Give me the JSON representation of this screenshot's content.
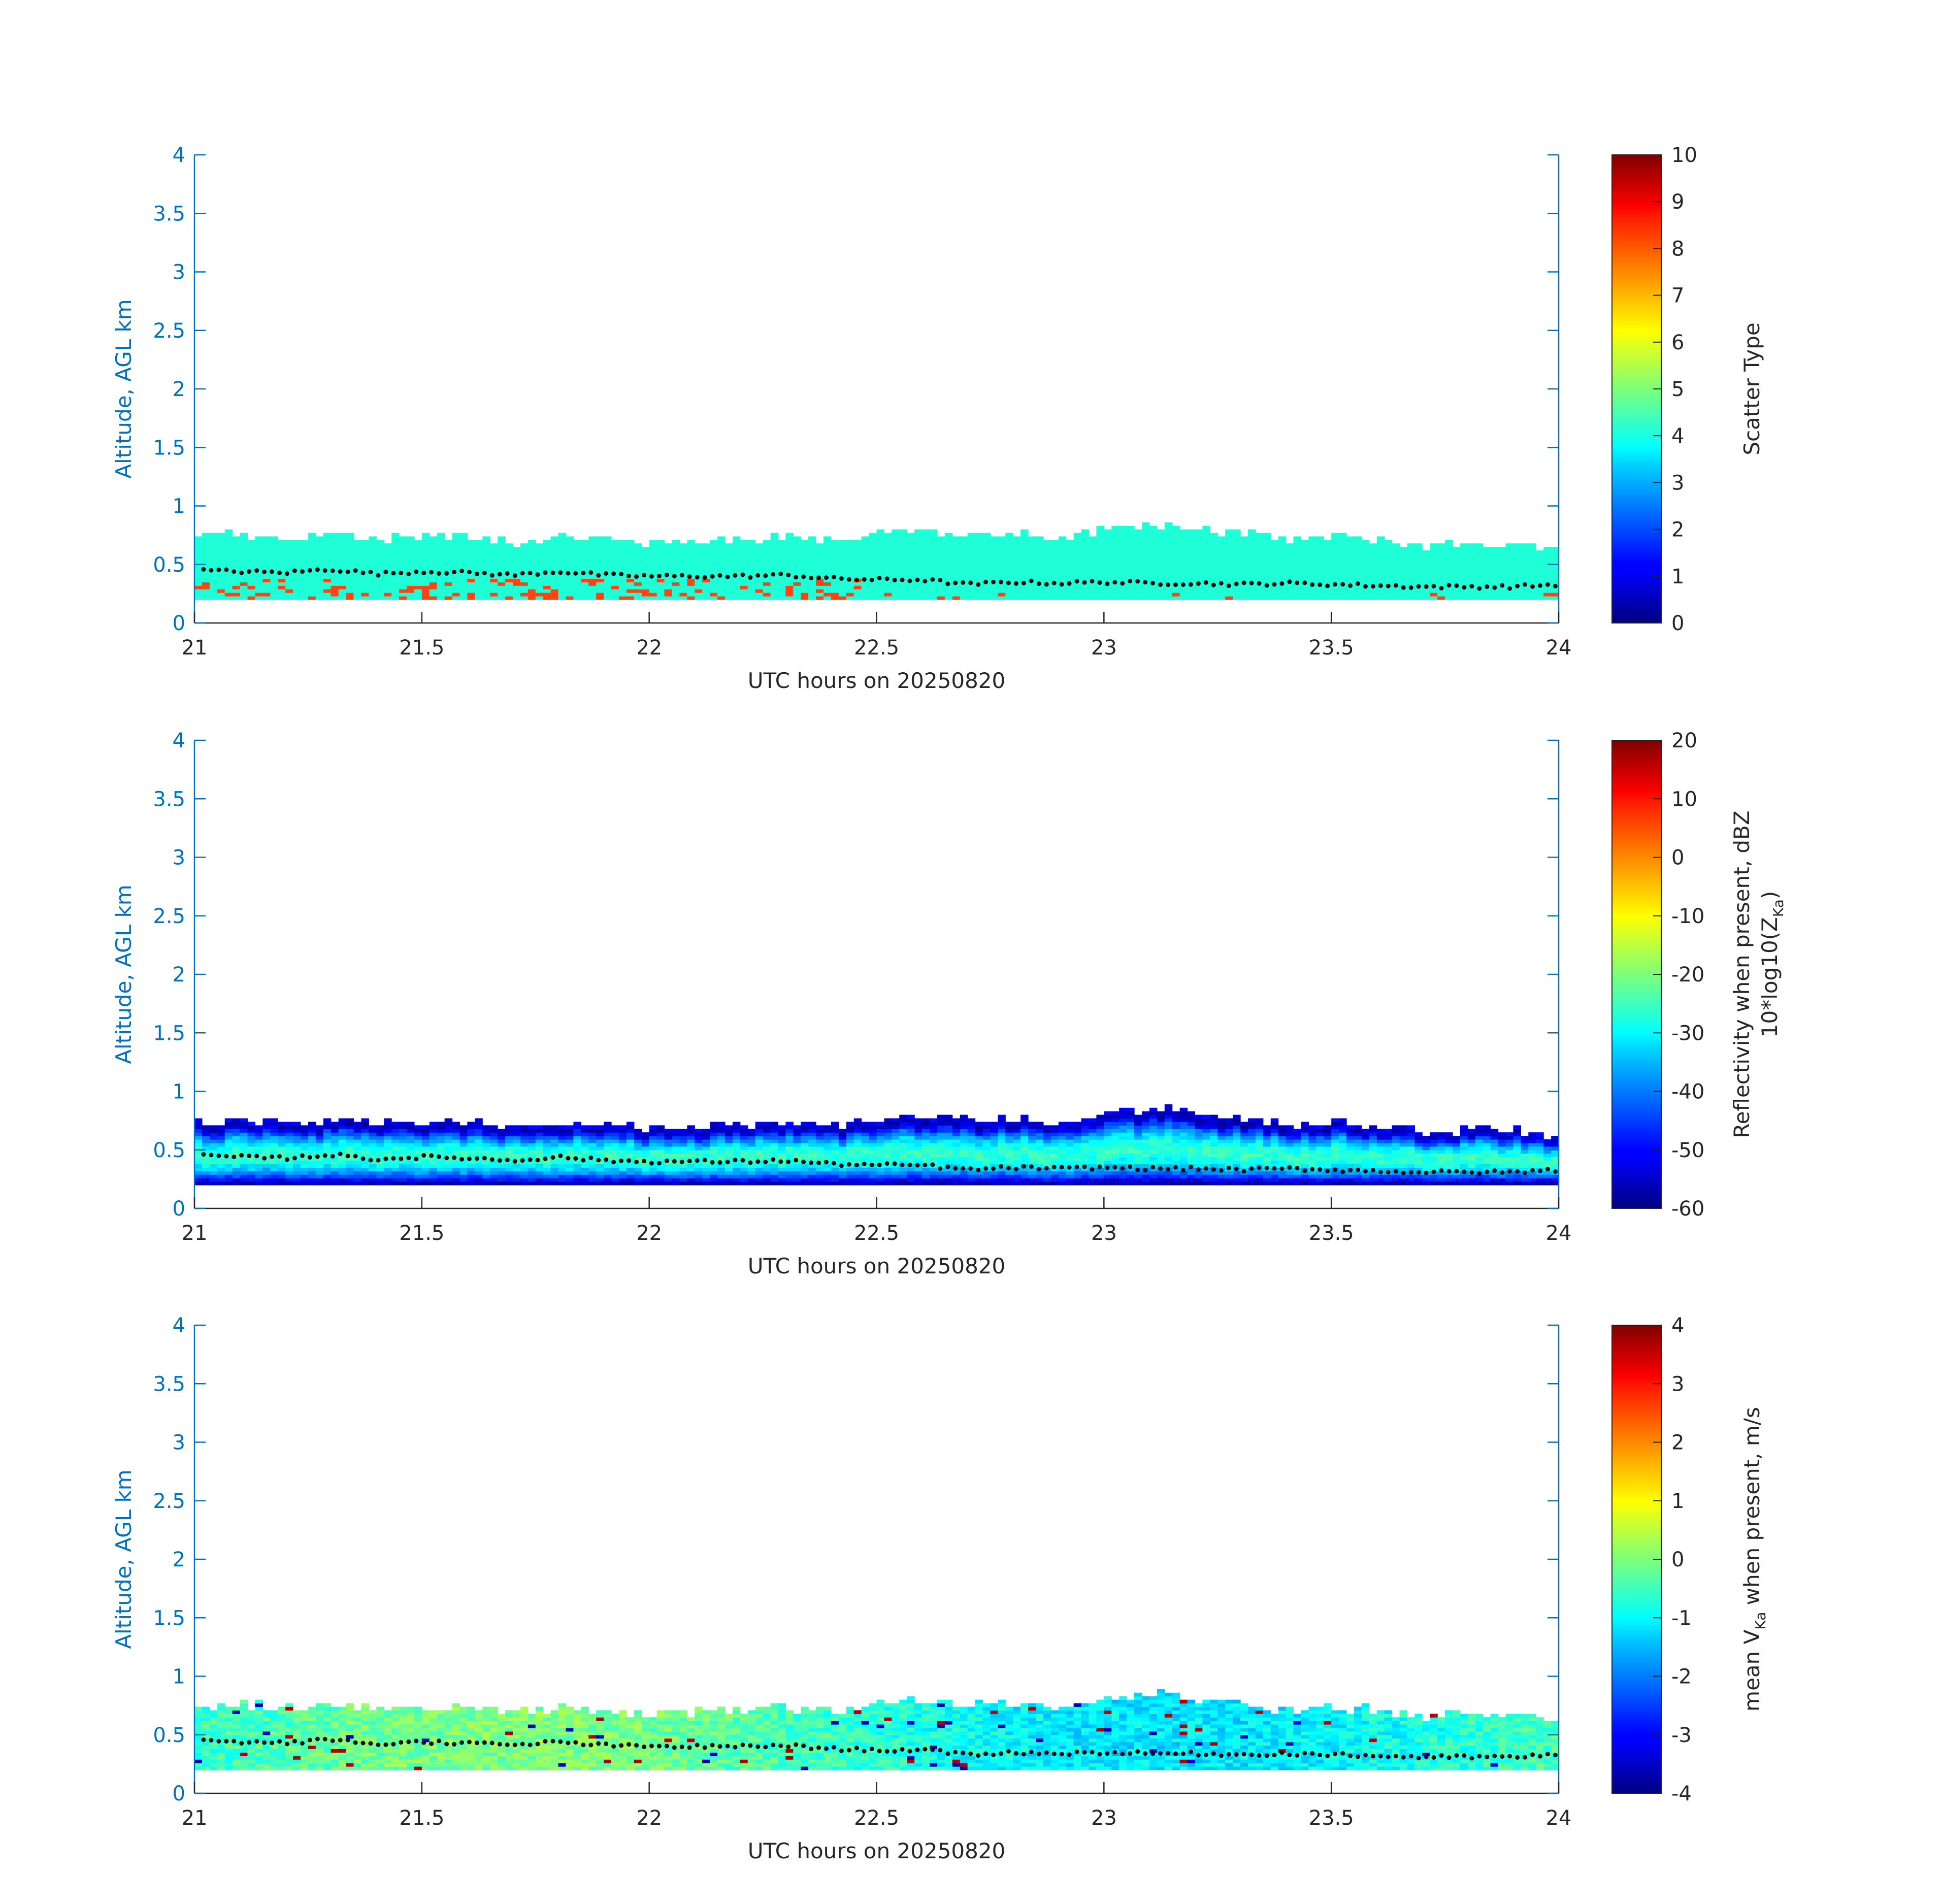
{
  "colors": {
    "axis_blue": "#0072BD",
    "text_dark": "#262626",
    "marker": "#111111",
    "scatter_cyan": "#1effd8",
    "scatter_orange": "#ff4312"
  },
  "chart_data": [
    {
      "type": "heatmap",
      "xlabel": "UTC hours on 20250820",
      "ylabel": "Altitude, AGL km",
      "xlim": [
        21,
        24
      ],
      "ylim": [
        0,
        4
      ],
      "xticks": [
        "21",
        "21.5",
        "22",
        "22.5",
        "23",
        "23.5",
        "24"
      ],
      "yticks": [
        "0",
        "0.5",
        "1",
        "1.5",
        "2",
        "2.5",
        "3",
        "3.5",
        "4"
      ],
      "colorbar": {
        "label": "Scatter Type",
        "label_line2": "",
        "clim": [
          0,
          10
        ],
        "ticks": [
          "0",
          "1",
          "2",
          "3",
          "4",
          "5",
          "6",
          "7",
          "8",
          "9",
          "10"
        ]
      },
      "field": "scatter_type",
      "cloud_base_km_approx": 0.2,
      "typical_value": 3.6,
      "precip_value": 8.4
    },
    {
      "type": "heatmap",
      "xlabel": "UTC hours on 20250820",
      "ylabel": "Altitude, AGL km",
      "xlim": [
        21,
        24
      ],
      "ylim": [
        0,
        4
      ],
      "xticks": [
        "21",
        "21.5",
        "22",
        "22.5",
        "23",
        "23.5",
        "24"
      ],
      "yticks": [
        "0",
        "0.5",
        "1",
        "1.5",
        "2",
        "2.5",
        "3",
        "3.5",
        "4"
      ],
      "colorbar": {
        "label": "Reflectivity when present, dBZ",
        "label_line2": "10*log10(Z",
        "label_sub": "Ka",
        "label_end": ")",
        "clim": [
          -60,
          20
        ],
        "ticks": [
          "-60",
          "-50",
          "-40",
          "-30",
          "-20",
          "-10",
          "0",
          "10",
          "20"
        ]
      },
      "field": "reflectivity",
      "value_range_dbz": [
        -58,
        -25
      ]
    },
    {
      "type": "heatmap",
      "xlabel": "UTC hours on 20250820",
      "ylabel": "Altitude, AGL km",
      "xlim": [
        21,
        24
      ],
      "ylim": [
        0,
        4
      ],
      "xticks": [
        "21",
        "21.5",
        "22",
        "22.5",
        "23",
        "23.5",
        "24"
      ],
      "yticks": [
        "0",
        "0.5",
        "1",
        "1.5",
        "2",
        "2.5",
        "3",
        "3.5",
        "4"
      ],
      "colorbar": {
        "label": "mean V",
        "label_sub": "Ka",
        "label_end": " when present, m/s",
        "clim": [
          -4,
          4
        ],
        "ticks": [
          "-4",
          "-3",
          "-2",
          "-1",
          "0",
          "1",
          "2",
          "3",
          "4"
        ]
      },
      "field": "mean_velocity",
      "value_range_ms": [
        -1.2,
        0.6
      ]
    }
  ],
  "profile": {
    "x": [
      21.0,
      21.1,
      21.2,
      21.3,
      21.4,
      21.5,
      21.6,
      21.7,
      21.8,
      21.9,
      22.0,
      22.1,
      22.2,
      22.3,
      22.4,
      22.5,
      22.6,
      22.7,
      22.8,
      22.9,
      23.0,
      23.1,
      23.2,
      23.3,
      23.4,
      23.5,
      23.6,
      23.7,
      23.8,
      23.9,
      24.0
    ],
    "cloud_top_km": [
      0.72,
      0.74,
      0.72,
      0.74,
      0.7,
      0.72,
      0.72,
      0.68,
      0.72,
      0.7,
      0.66,
      0.68,
      0.7,
      0.72,
      0.68,
      0.76,
      0.78,
      0.74,
      0.76,
      0.72,
      0.8,
      0.84,
      0.8,
      0.74,
      0.7,
      0.72,
      0.7,
      0.64,
      0.66,
      0.66,
      0.6
    ],
    "marker_km": [
      0.45,
      0.44,
      0.43,
      0.46,
      0.42,
      0.44,
      0.43,
      0.41,
      0.44,
      0.41,
      0.4,
      0.4,
      0.4,
      0.41,
      0.38,
      0.37,
      0.37,
      0.33,
      0.35,
      0.34,
      0.35,
      0.34,
      0.34,
      0.33,
      0.34,
      0.33,
      0.32,
      0.31,
      0.31,
      0.31,
      0.33
    ]
  }
}
